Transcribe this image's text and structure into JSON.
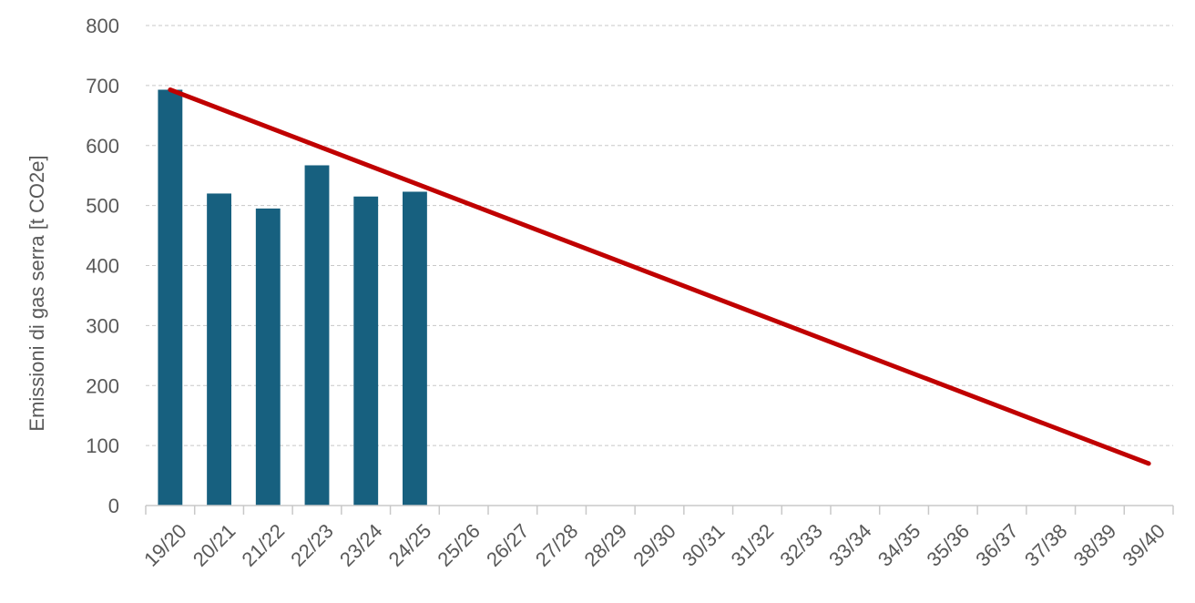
{
  "chart_data": {
    "type": "bar",
    "title": "",
    "xlabel": "",
    "ylabel": "Emissioni di gas serra [t CO2e]",
    "categories": [
      "19/20",
      "20/21",
      "21/22",
      "22/23",
      "23/24",
      "24/25",
      "25/26",
      "26/27",
      "27/28",
      "28/29",
      "29/30",
      "30/31",
      "31/32",
      "32/33",
      "33/34",
      "34/35",
      "35/36",
      "36/37",
      "37/38",
      "38/39",
      "39/40"
    ],
    "ylim": [
      0,
      800
    ],
    "yticks": [
      0,
      100,
      200,
      300,
      400,
      500,
      600,
      700,
      800
    ],
    "grid": true,
    "series": [
      {
        "type": "bar",
        "color": "#17607f",
        "values": [
          693,
          520,
          495,
          567,
          515,
          523,
          null,
          null,
          null,
          null,
          null,
          null,
          null,
          null,
          null,
          null,
          null,
          null,
          null,
          null,
          null
        ]
      },
      {
        "type": "line",
        "color": "#c00000",
        "values": [
          693,
          null,
          null,
          null,
          null,
          null,
          null,
          null,
          null,
          null,
          null,
          null,
          null,
          null,
          null,
          null,
          null,
          null,
          null,
          null,
          70
        ]
      }
    ]
  }
}
